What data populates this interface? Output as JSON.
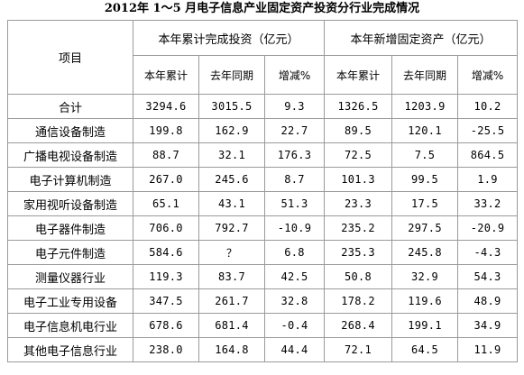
{
  "title": "2012年 1～5 月电子信息产业固定资产投资分行业完成情况",
  "header": {
    "item_label": "项目",
    "group1_label": "本年累计完成投资（亿元）",
    "group2_label": "本年新增固定资产（亿元）",
    "col_labels": [
      "本年累计",
      "去年同期",
      "增减%",
      "本年累计",
      "去年同期",
      "增减%"
    ]
  },
  "rows": [
    {
      "name": "合计",
      "values": [
        "3294.6",
        "3015.5",
        "9.3",
        "1326.5",
        "1203.9",
        "10.2"
      ]
    },
    {
      "name": "通信设备制造",
      "values": [
        "199.8",
        "162.9",
        "22.7",
        "89.5",
        "120.1",
        "-25.5"
      ]
    },
    {
      "name": "广播电视设备制造",
      "values": [
        "88.7",
        "32.1",
        "176.3",
        "72.5",
        "7.5",
        "864.5"
      ]
    },
    {
      "name": "电子计算机制造",
      "values": [
        "267.0",
        "245.6",
        "8.7",
        "101.3",
        "99.5",
        "1.9"
      ]
    },
    {
      "name": "家用视听设备制造",
      "values": [
        "65.1",
        "43.1",
        "51.3",
        "23.3",
        "17.5",
        "33.2"
      ]
    },
    {
      "name": "电子器件制造",
      "values": [
        "706.0",
        "792.7",
        "-10.9",
        "235.2",
        "297.5",
        "-20.9"
      ]
    },
    {
      "name": "电子元件制造",
      "values": [
        "584.6",
        "？",
        "6.8",
        "235.3",
        "245.8",
        "-4.3"
      ]
    },
    {
      "name": "测量仪器行业",
      "values": [
        "119.3",
        "83.7",
        "42.5",
        "50.8",
        "32.9",
        "54.3"
      ]
    },
    {
      "name": "电子工业专用设备",
      "values": [
        "347.5",
        "261.7",
        "32.8",
        "178.2",
        "119.6",
        "48.9"
      ]
    },
    {
      "name": "电子信息机电行业",
      "values": [
        "678.6",
        "681.4",
        "-0.4",
        "268.4",
        "199.1",
        "34.9"
      ]
    },
    {
      "name": "其他电子信息行业",
      "values": [
        "238.0",
        "164.8",
        "44.4",
        "72.1",
        "64.5",
        "11.9"
      ]
    }
  ]
}
